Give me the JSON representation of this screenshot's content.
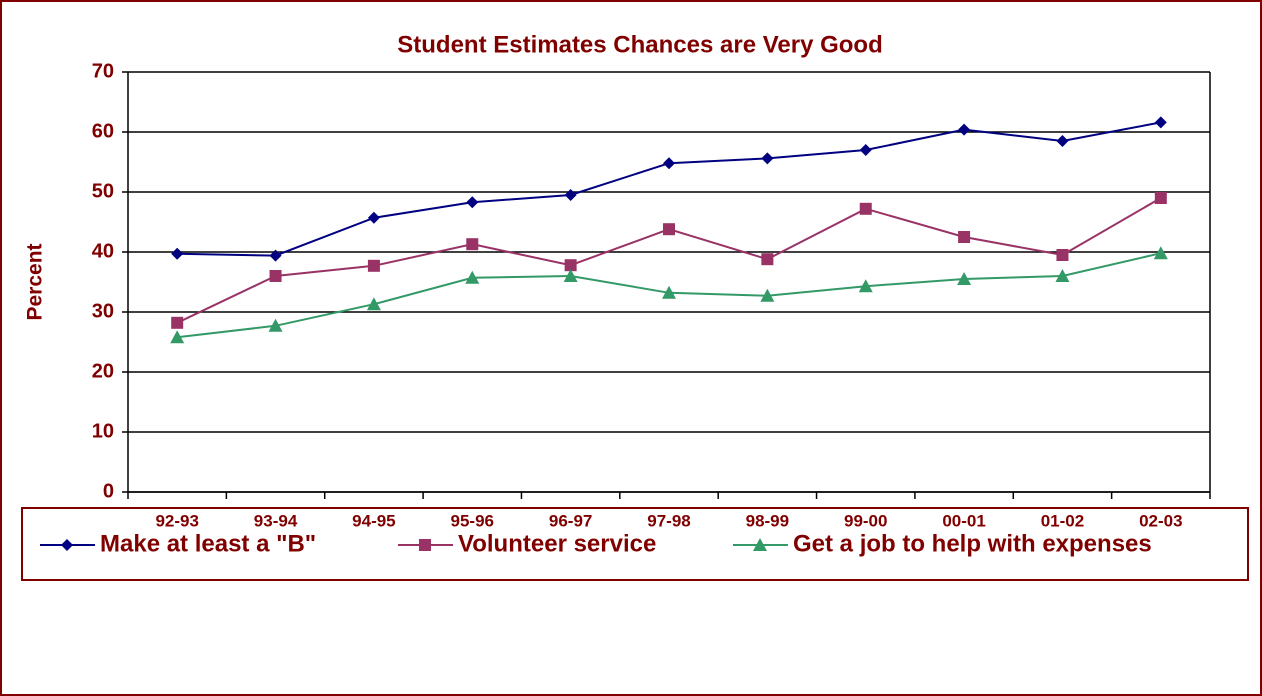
{
  "chart_data": {
    "type": "line",
    "title": "Student Estimates Chances are Very Good",
    "y_label": "Percent",
    "categories": [
      "92-93",
      "93-94",
      "94-95",
      "95-96",
      "96-97",
      "97-98",
      "98-99",
      "99-00",
      "00-01",
      "01-02",
      "02-03"
    ],
    "series": [
      {
        "name": "Make at least a \"B\"",
        "color": "#000080",
        "marker": "diamond",
        "values": [
          39.7,
          39.4,
          45.7,
          48.3,
          49.5,
          54.8,
          55.6,
          57,
          60.4,
          58.5,
          61.6
        ]
      },
      {
        "name": "Volunteer service",
        "color": "#993366",
        "marker": "square",
        "values": [
          28.2,
          36,
          37.7,
          41.3,
          37.8,
          43.8,
          38.8,
          47.2,
          42.5,
          39.5,
          49
        ]
      },
      {
        "name": "Get a job to help with expenses",
        "color": "#339966",
        "marker": "triangle",
        "values": [
          25.8,
          27.7,
          31.3,
          35.7,
          36,
          33.2,
          32.7,
          34.3,
          35.5,
          36,
          39.8
        ]
      }
    ],
    "ylim": [
      0,
      70
    ],
    "yticks": [
      0,
      10,
      20,
      30,
      40,
      50,
      60,
      70
    ],
    "grid": true,
    "legend": "bottom"
  }
}
